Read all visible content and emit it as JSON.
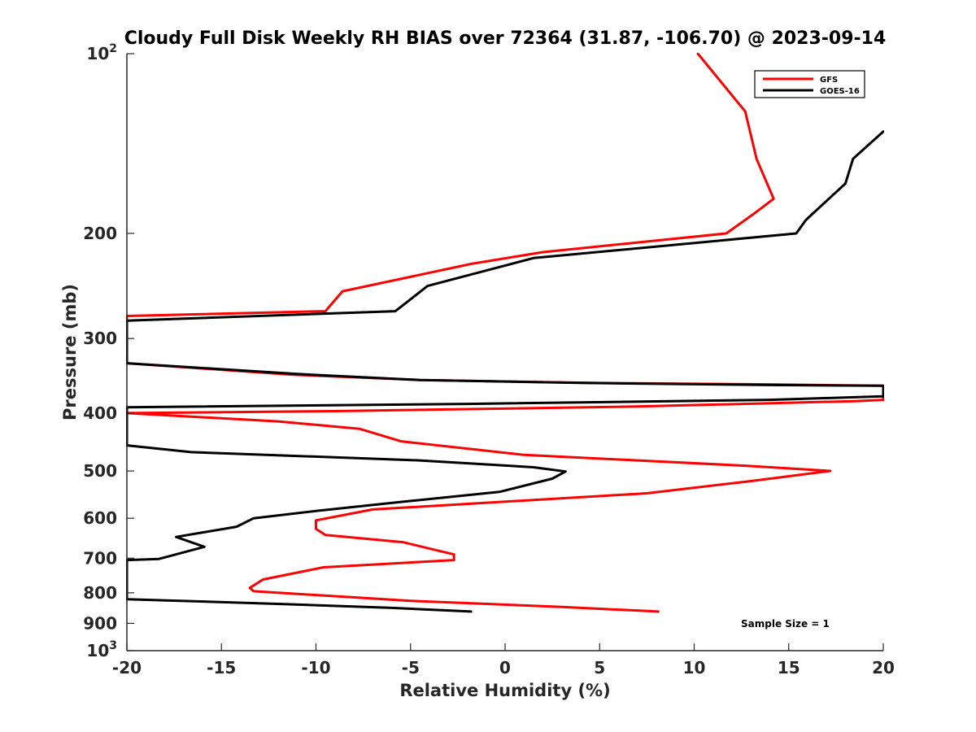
{
  "chart_data": {
    "type": "line",
    "title": "Cloudy Full Disk Weekly RH BIAS over 72364 (31.87, -106.70) @ 2023-09-14",
    "xlabel": "Relative Humidity (%)",
    "ylabel": "Pressure (mb)",
    "xlim": [
      -20,
      20
    ],
    "ylim": [
      100,
      1000
    ],
    "y_scale": "log",
    "y_reversed": true,
    "grid": false,
    "legend_position": "top-right",
    "x_ticks": [
      -20,
      -15,
      -10,
      -5,
      0,
      5,
      10,
      15,
      20
    ],
    "x_tick_labels": [
      "-20",
      "-15",
      "-10",
      "-5",
      "0",
      "5",
      "10",
      "15",
      "20"
    ],
    "y_ticks": [
      100,
      200,
      300,
      400,
      500,
      600,
      700,
      800,
      900,
      1000
    ],
    "y_tick_labels": [
      {
        "base": "10",
        "exp": "2"
      },
      {
        "base": "200",
        "exp": ""
      },
      {
        "base": "300",
        "exp": ""
      },
      {
        "base": "400",
        "exp": ""
      },
      {
        "base": "500",
        "exp": ""
      },
      {
        "base": "600",
        "exp": ""
      },
      {
        "base": "700",
        "exp": ""
      },
      {
        "base": "800",
        "exp": ""
      },
      {
        "base": "900",
        "exp": ""
      },
      {
        "base": "10",
        "exp": "3"
      }
    ],
    "annotation": "Sample Size = 1",
    "series": [
      {
        "name": "GFS",
        "color": "#ff0000",
        "points": [
          [
            10.2,
            100
          ],
          [
            12.7,
            125
          ],
          [
            13.3,
            150
          ],
          [
            14.2,
            175
          ],
          [
            13.2,
            185
          ],
          [
            11.7,
            200
          ],
          [
            2.0,
            215
          ],
          [
            -1.8,
            225
          ],
          [
            -8.6,
            250
          ],
          [
            -9.5,
            270
          ],
          [
            -20,
            275
          ],
          [
            -20,
            330
          ],
          [
            -11.2,
            345
          ],
          [
            -4.5,
            352
          ],
          [
            4.5,
            356
          ],
          [
            14,
            358
          ],
          [
            20,
            360
          ],
          [
            20,
            380
          ],
          [
            18.5,
            382
          ],
          [
            7,
            390
          ],
          [
            -9,
            397
          ],
          [
            -20,
            400
          ],
          [
            -12,
            413
          ],
          [
            -7.7,
            425
          ],
          [
            -5.5,
            446
          ],
          [
            1.0,
            470
          ],
          [
            12.7,
            490
          ],
          [
            17.2,
            500
          ],
          [
            13.0,
            520
          ],
          [
            7.5,
            545
          ],
          [
            -7.0,
            580
          ],
          [
            -10.0,
            605
          ],
          [
            -10.0,
            625
          ],
          [
            -9.5,
            640
          ],
          [
            -5.4,
            658
          ],
          [
            -2.7,
            690
          ],
          [
            -2.7,
            705
          ],
          [
            -9.6,
            725
          ],
          [
            -12.8,
            760
          ],
          [
            -13.5,
            785
          ],
          [
            -13.3,
            795
          ],
          [
            -5,
            825
          ],
          [
            3,
            845
          ],
          [
            8.1,
            860
          ]
        ]
      },
      {
        "name": "GOES-16",
        "color": "#000000",
        "points": [
          [
            20,
            135
          ],
          [
            18.4,
            150
          ],
          [
            18.0,
            165
          ],
          [
            15.9,
            190
          ],
          [
            15.4,
            200
          ],
          [
            1.5,
            220
          ],
          [
            -4.1,
            245
          ],
          [
            -5.8,
            270
          ],
          [
            -20,
            280
          ],
          [
            -20,
            330
          ],
          [
            -11,
            344
          ],
          [
            -4.5,
            352
          ],
          [
            4.0,
            356
          ],
          [
            14,
            359
          ],
          [
            20,
            360
          ],
          [
            20,
            375
          ],
          [
            14,
            380
          ],
          [
            -2,
            386
          ],
          [
            -20,
            391
          ],
          [
            -20,
            453
          ],
          [
            -16.6,
            465
          ],
          [
            -4.6,
            480
          ],
          [
            1.5,
            493
          ],
          [
            3.2,
            501
          ],
          [
            2.5,
            515
          ],
          [
            -0.3,
            542
          ],
          [
            -5.4,
            563
          ],
          [
            -9.9,
            583
          ],
          [
            -13.3,
            600
          ],
          [
            -14.2,
            620
          ],
          [
            -17.4,
            645
          ],
          [
            -15.9,
            670
          ],
          [
            -18.3,
            702
          ],
          [
            -20,
            705
          ],
          [
            -20,
            820
          ],
          [
            -11.5,
            836
          ],
          [
            -6,
            848
          ],
          [
            -1.8,
            860
          ]
        ]
      }
    ]
  }
}
